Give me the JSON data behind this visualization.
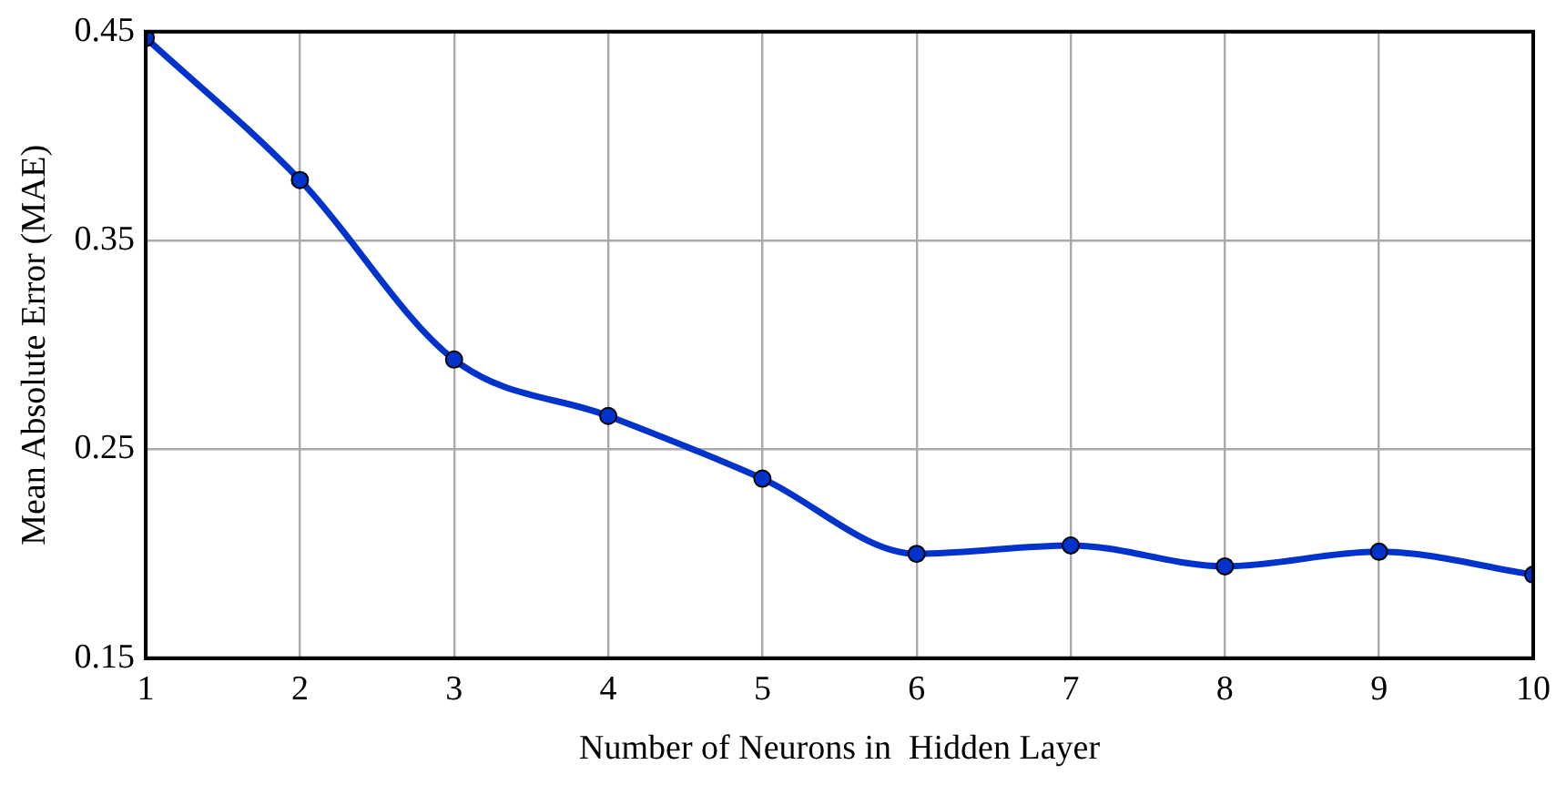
{
  "chart_data": {
    "type": "line",
    "xlabel": "Number of Neurons in  Hidden Layer",
    "ylabel": "Mean Absolute Error (MAE)",
    "x": [
      1,
      2,
      3,
      4,
      5,
      6,
      7,
      8,
      9,
      10
    ],
    "series": [
      {
        "color": "#0033cc",
        "values": [
          0.447,
          0.379,
          0.293,
          0.266,
          0.236,
          0.2,
          0.204,
          0.194,
          0.201,
          0.19
        ]
      }
    ],
    "xlim": [
      1,
      10
    ],
    "xticks": [
      1,
      2,
      3,
      4,
      5,
      6,
      7,
      8,
      9,
      10
    ],
    "ylim": [
      0.15,
      0.45
    ],
    "yticks": [
      0.15,
      0.25,
      0.35,
      0.45
    ],
    "grid": true,
    "legend": false,
    "marker": "circle",
    "line_style": "solid"
  }
}
